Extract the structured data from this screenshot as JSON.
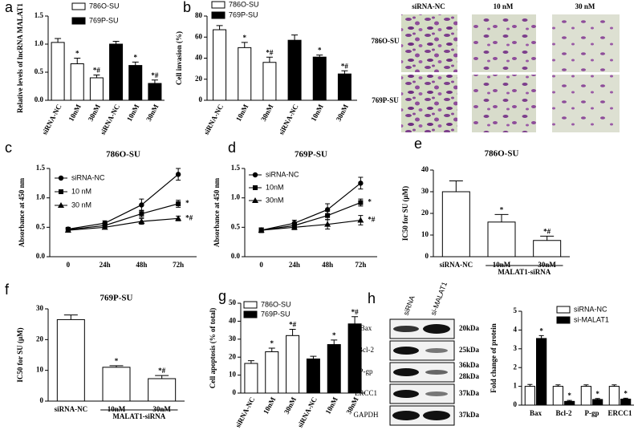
{
  "chart_data": [
    {
      "type": "bar",
      "panel": "a",
      "y_label": "Relative levels of lncRNA MALAT1",
      "categories": [
        "siRNA-NC",
        "10nM",
        "30nM",
        "siRNA-NC",
        "10nM",
        "30nM"
      ],
      "series": [
        {
          "name": "786O-SU",
          "color": "#ffffff",
          "values": [
            1.03,
            0.65,
            0.4,
            null,
            null,
            null
          ],
          "errors": [
            0.07,
            0.1,
            0.05,
            null,
            null,
            null
          ],
          "annotations": [
            null,
            "*",
            "*#",
            null,
            null,
            null
          ]
        },
        {
          "name": "769P-SU",
          "color": "#000000",
          "values": [
            null,
            null,
            null,
            1.0,
            0.62,
            0.3
          ],
          "errors": [
            null,
            null,
            null,
            0.05,
            0.06,
            0.06
          ],
          "annotations": [
            null,
            null,
            null,
            null,
            "*",
            "*#"
          ]
        }
      ],
      "ylim": [
        0,
        1.5
      ],
      "yticks": [
        {
          "value": 0,
          "label": "0.0"
        },
        0.5,
        {
          "value": 1,
          "label": "1.0"
        },
        1.5
      ],
      "legend": "upper left"
    },
    {
      "type": "bar",
      "panel": "b",
      "y_label": "Cell invasion (%)",
      "categories": [
        "siRNA-NC",
        "10nM",
        "30nM",
        "siRNA-NC",
        "10nM",
        "30nM"
      ],
      "series": [
        {
          "name": "786O-SU",
          "color": "#ffffff",
          "values": [
            67,
            50,
            36,
            null,
            null,
            null
          ],
          "errors": [
            4,
            5,
            5,
            null,
            null,
            null
          ],
          "annotations": [
            null,
            "*",
            "*#",
            null,
            null,
            null
          ]
        },
        {
          "name": "769P-SU",
          "color": "#000000",
          "values": [
            null,
            null,
            null,
            57,
            41,
            25
          ],
          "errors": [
            null,
            null,
            null,
            5,
            2,
            3
          ],
          "annotations": [
            null,
            null,
            null,
            null,
            "*",
            "*#"
          ]
        }
      ],
      "ylim": [
        0,
        80
      ],
      "yticks": [
        0,
        20,
        40,
        60,
        80
      ],
      "legend": "upper left"
    },
    {
      "type": "line",
      "panel": "c",
      "title": "786O-SU",
      "y_label": "Absorbance at 450 nm",
      "categories": [
        "0",
        "24h",
        "48h",
        "72h"
      ],
      "series": [
        {
          "name": "siRNA-NC",
          "color": "#000000",
          "marker": "circle",
          "values": [
            0.47,
            0.57,
            0.88,
            1.4
          ],
          "errors": [
            0.03,
            0.04,
            0.1,
            0.1
          ],
          "annotations": [
            null,
            null,
            null,
            null
          ]
        },
        {
          "name": "10 nM",
          "color": "#000000",
          "marker": "square",
          "values": [
            0.46,
            0.53,
            0.73,
            0.9
          ],
          "errors": [
            0.03,
            0.03,
            0.06,
            0.06
          ],
          "annotations": [
            null,
            null,
            null,
            "*"
          ]
        },
        {
          "name": "30 nM",
          "color": "#000000",
          "marker": "triangle",
          "values": [
            0.45,
            0.5,
            0.6,
            0.65
          ],
          "errors": [
            0.03,
            0.03,
            0.05,
            0.04
          ],
          "annotations": [
            null,
            null,
            null,
            "*#"
          ]
        }
      ],
      "ylim": [
        0,
        1.5
      ],
      "yticks": [
        {
          "value": 0,
          "label": "0.0"
        },
        0.5,
        {
          "value": 1,
          "label": "1.0"
        },
        1.5
      ],
      "legend": "upper left"
    },
    {
      "type": "line",
      "panel": "d",
      "title": "769P-SU",
      "y_label": "Absorbance at 450 nm",
      "categories": [
        "0",
        "24h",
        "48h",
        "72h"
      ],
      "series": [
        {
          "name": "siRNA-NC",
          "color": "#000000",
          "marker": "circle",
          "values": [
            0.45,
            0.57,
            0.8,
            1.25
          ],
          "errors": [
            0.04,
            0.05,
            0.1,
            0.1
          ],
          "annotations": [
            null,
            null,
            null,
            null
          ]
        },
        {
          "name": "10nM",
          "color": "#000000",
          "marker": "square",
          "values": [
            0.45,
            0.53,
            0.7,
            0.92
          ],
          "errors": [
            0.04,
            0.04,
            0.07,
            0.06
          ],
          "annotations": [
            null,
            null,
            null,
            "*"
          ]
        },
        {
          "name": "30nM",
          "color": "#000000",
          "marker": "triangle",
          "values": [
            0.45,
            0.5,
            0.55,
            0.62
          ],
          "errors": [
            0.04,
            0.04,
            0.08,
            0.08
          ],
          "annotations": [
            null,
            null,
            null,
            "*#"
          ]
        }
      ],
      "ylim": [
        0,
        1.5
      ],
      "yticks": [
        {
          "value": 0,
          "label": "0.0"
        },
        0.5,
        {
          "value": 1,
          "label": "1.0"
        },
        1.5
      ],
      "legend": "upper left"
    },
    {
      "type": "bar",
      "panel": "e",
      "title": "786O-SU",
      "y_label": "IC50 for SU (μM)",
      "group_label": "MALAT1-siRNA",
      "categories": [
        "siRNA-NC",
        "10nM",
        "30nM"
      ],
      "series": [
        {
          "color": "#ffffff",
          "values": [
            30,
            16,
            7.5
          ],
          "errors": [
            5,
            3.5,
            2
          ],
          "annotations": [
            null,
            "*",
            "*#"
          ]
        }
      ],
      "ylim": [
        0,
        40
      ],
      "yticks": [
        0,
        10,
        20,
        30,
        40
      ]
    },
    {
      "type": "bar",
      "panel": "f",
      "title": "769P-SU",
      "y_label": "IC50 for SU (μM)",
      "group_label": "MALAT1-siRNA",
      "categories": [
        "siRNA-NC",
        "10nM",
        "30nM"
      ],
      "series": [
        {
          "color": "#ffffff",
          "values": [
            26.5,
            11,
            7.3
          ],
          "errors": [
            1.5,
            0.5,
            1
          ],
          "annotations": [
            null,
            "*",
            "*#"
          ]
        }
      ],
      "ylim": [
        0,
        30
      ],
      "yticks": [
        0,
        10,
        20,
        30
      ]
    },
    {
      "type": "bar",
      "panel": "g",
      "y_label": "Cell apoptosis (% of total)",
      "categories": [
        "siRNA-NC",
        "10nM",
        "30nM",
        "siRNA-NC",
        "10nM",
        "30nM"
      ],
      "series": [
        {
          "name": "786O-SU",
          "color": "#ffffff",
          "values": [
            16.5,
            23,
            32,
            null,
            null,
            null
          ],
          "errors": [
            1.5,
            2,
            3.5,
            null,
            null,
            null
          ],
          "annotations": [
            null,
            "*",
            "*#",
            null,
            null,
            null
          ]
        },
        {
          "name": "769P-SU",
          "color": "#000000",
          "values": [
            null,
            null,
            null,
            19,
            27,
            38.5
          ],
          "errors": [
            null,
            null,
            null,
            1.5,
            2.5,
            4
          ],
          "annotations": [
            null,
            null,
            null,
            null,
            "*",
            "*#"
          ]
        }
      ],
      "ylim": [
        0,
        50
      ],
      "yticks": [
        0,
        10,
        20,
        30,
        40,
        50
      ],
      "legend": "upper left"
    },
    {
      "type": "bar",
      "y_label": "Fold change of protein",
      "categories": [
        "Bax",
        "Bcl-2",
        "P-gp",
        "ERCC1"
      ],
      "series": [
        {
          "name": "siRNA-NC",
          "color": "#ffffff",
          "values": [
            1,
            1,
            1,
            1
          ],
          "errors": [
            0.1,
            0.08,
            0.08,
            0.08
          ]
        },
        {
          "name": "si-MALAT1",
          "color": "#000000",
          "values": [
            3.55,
            0.2,
            0.3,
            0.32
          ],
          "errors": [
            0.15,
            0.05,
            0.05,
            0.05
          ],
          "annotations": [
            "*",
            "*",
            "*",
            "*"
          ]
        }
      ],
      "ylim": [
        0,
        5
      ],
      "yticks": [
        0,
        1,
        2,
        3,
        4,
        5
      ],
      "legend": "upper right"
    }
  ],
  "invasion_images": {
    "columns": [
      "siRNA-NC",
      "10 nM",
      "30 nM"
    ],
    "rows": [
      "786O-SU",
      "769P-SU"
    ]
  },
  "western_blot": {
    "panel": "h",
    "lanes": [
      "siRNA",
      "si-MALAT1"
    ],
    "proteins": [
      "Bax",
      "Bcl-2",
      "P-gp",
      "ERCC1",
      "GAPDH"
    ],
    "markers": [
      "20kDa",
      "25kDa",
      "36kDa",
      "28kDa",
      "37kDa",
      "37kDa"
    ]
  }
}
